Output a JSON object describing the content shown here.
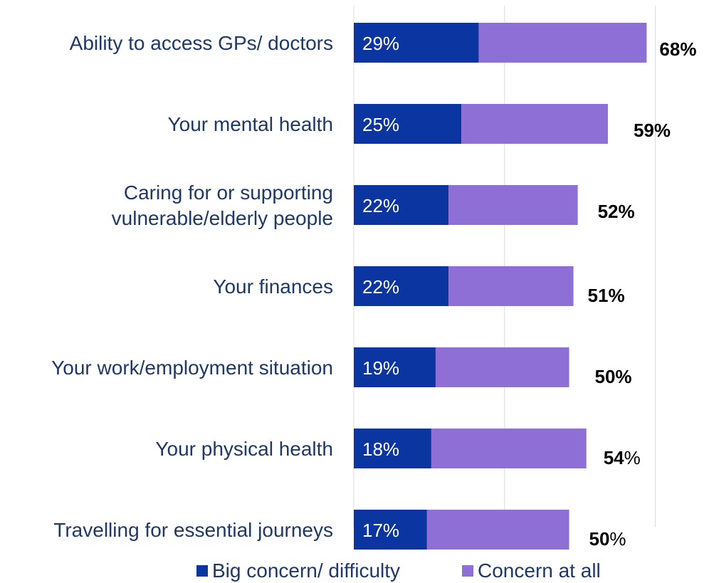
{
  "chart_data": {
    "type": "bar",
    "orientation": "horizontal",
    "stacked": true,
    "categories": [
      [
        "Ability to access GPs/ doctors"
      ],
      [
        "Your mental health"
      ],
      [
        "Caring for or supporting",
        "vulnerable/elderly people"
      ],
      [
        "Your finances"
      ],
      [
        "Your work/employment situation"
      ],
      [
        "Your physical health"
      ],
      [
        "Travelling for essential journeys"
      ]
    ],
    "series": [
      {
        "name": "Big concern/ difficulty",
        "color": "#0b35a0",
        "values": [
          29,
          25,
          22,
          22,
          19,
          18,
          17
        ]
      },
      {
        "name": "Concern at all",
        "color": "#8e6fd6",
        "values": [
          39,
          34,
          30,
          29,
          31,
          36,
          33
        ]
      }
    ],
    "segment_labels": [
      "29%",
      "25%",
      "22%",
      "22%",
      "19%",
      "18%",
      "17%"
    ],
    "totals": [
      {
        "num": "68",
        "pct": "%",
        "pct_bold": true
      },
      {
        "num": "59",
        "pct": "%",
        "pct_bold": true
      },
      {
        "num": "52",
        "pct": "%",
        "pct_bold": true
      },
      {
        "num": "51",
        "pct": "%",
        "pct_bold": true
      },
      {
        "num": "50",
        "pct": "%",
        "pct_bold": true
      },
      {
        "num": "54",
        "pct": "%",
        "pct_bold": false
      },
      {
        "num": "50",
        "pct": "%",
        "pct_bold": false
      }
    ],
    "xlim": [
      0,
      100
    ],
    "gridlines": true,
    "legend_position": "bottom"
  }
}
